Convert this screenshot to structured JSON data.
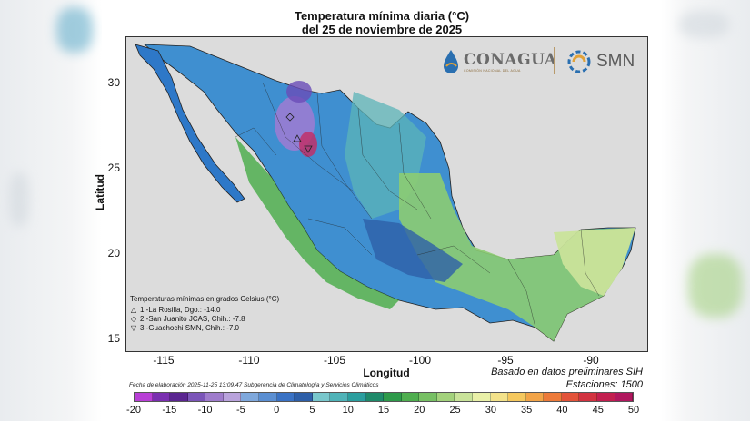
{
  "title_line1": "Temperatura mínima diaria (°C)",
  "title_line2": "del 25 de noviembre de 2025",
  "logos": {
    "conagua": "CONAGUA",
    "conagua_sub": "COMISIÓN NACIONAL DEL AGUA",
    "smn": "SMN"
  },
  "axes": {
    "xlabel": "Longitud",
    "ylabel": "Latitud",
    "x_ticks": [
      "-115",
      "-110",
      "-105",
      "-100",
      "-95",
      "-90"
    ],
    "y_ticks": [
      "30",
      "25",
      "20",
      "15"
    ]
  },
  "legend": {
    "heading": "Temperaturas mínimas en grados Celsius (°C)",
    "entries": [
      {
        "symbol": "△",
        "text": "1.-La Rosilla, Dgo.: -14.0"
      },
      {
        "symbol": "◇",
        "text": "2.-San Juanito JCAS, Chih.: -7.8"
      },
      {
        "symbol": "▽",
        "text": "3.-Guachochi SMN, Chih.: -7.0"
      }
    ]
  },
  "source_note": "Basado en datos preliminares SIH",
  "stations": "Estaciones:  1500",
  "fecha": "Fecha de elaboración 2025-11-25 13:09:47 Subgerencia de Climatología y Servicios Climáticos",
  "colorbar": {
    "ticks": [
      "-20",
      "-15",
      "-10",
      "-5",
      "0",
      "5",
      "10",
      "15",
      "20",
      "25",
      "30",
      "35",
      "40",
      "45",
      "50"
    ],
    "colors": [
      "#b83fd6",
      "#7a2fb0",
      "#5a2590",
      "#7b55b8",
      "#9f7ccc",
      "#b9a3dc",
      "#7fa8dc",
      "#5b8fd2",
      "#3a72c4",
      "#2e5fa8",
      "#79c7cc",
      "#4fb3b8",
      "#2b9e9e",
      "#1f8a6a",
      "#2e9a4a",
      "#4fae4f",
      "#77c064",
      "#a3d27c",
      "#c9e39a",
      "#e9f0a8",
      "#f3e28a",
      "#f5c85e",
      "#f2a448",
      "#ec7a3a",
      "#e2533a",
      "#d23340",
      "#c21f4f",
      "#b0175e"
    ]
  }
}
